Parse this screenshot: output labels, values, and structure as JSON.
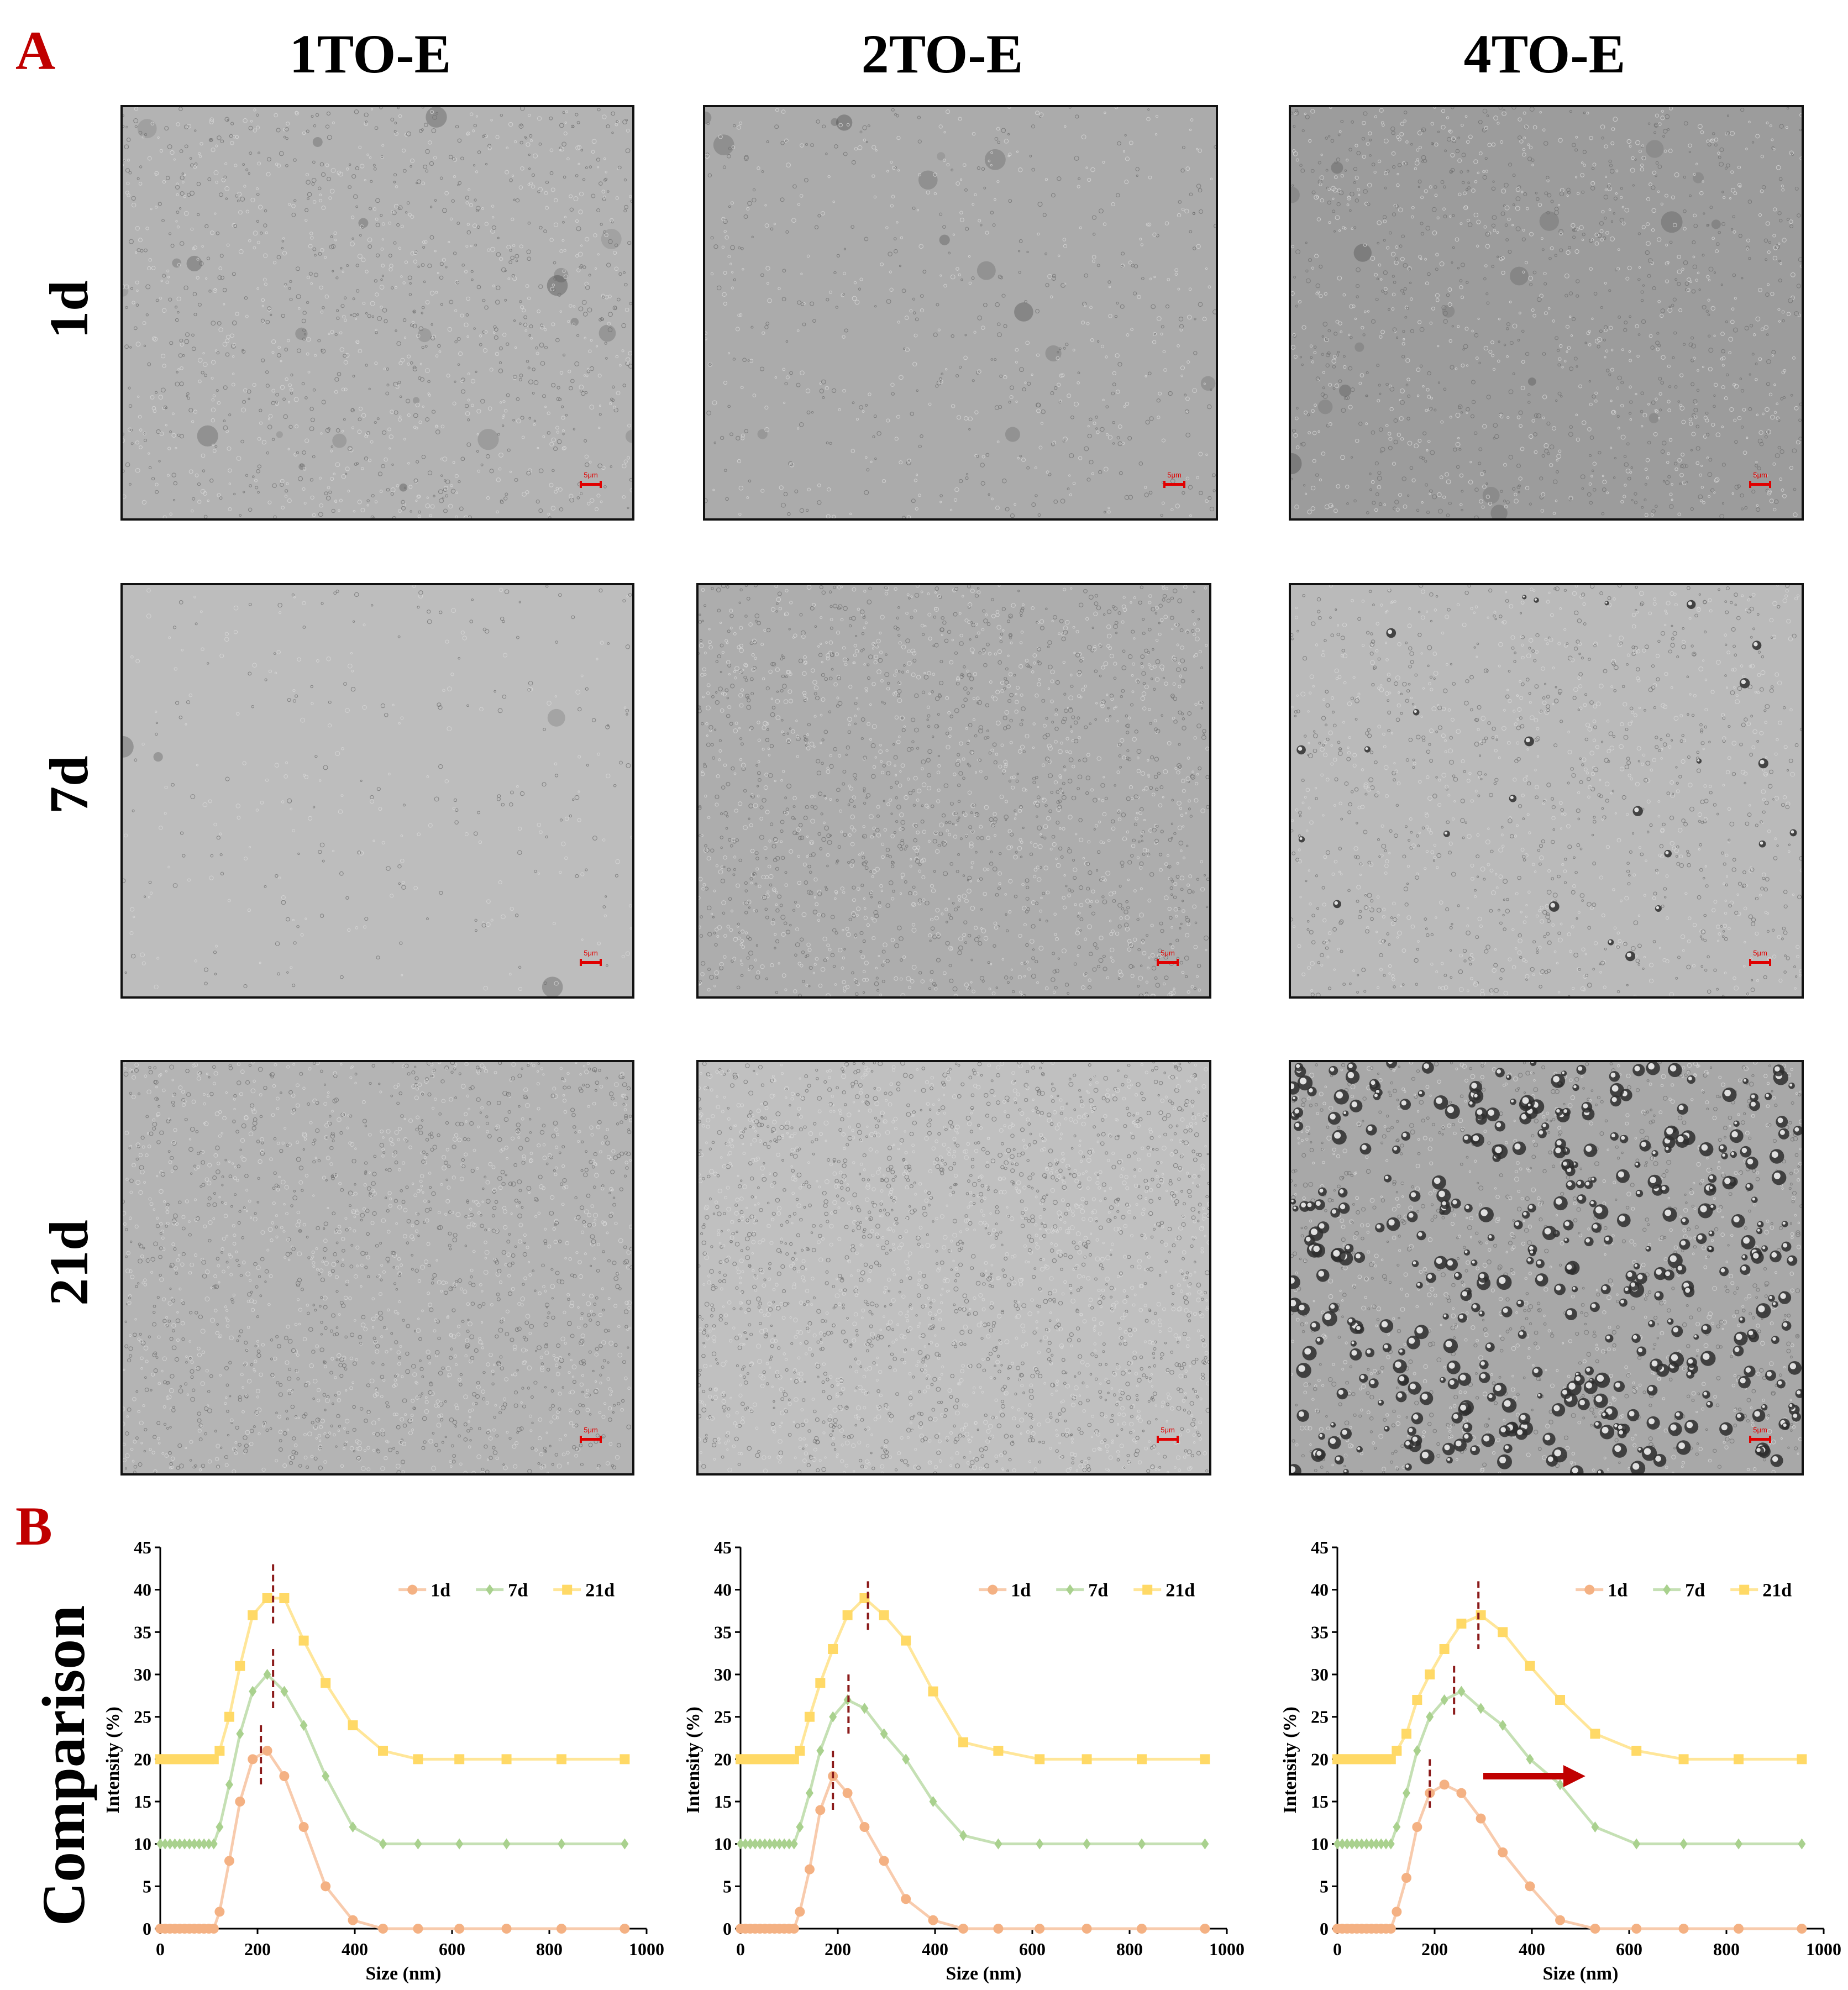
{
  "panels": {
    "a": "A",
    "b": "B"
  },
  "columns": [
    "1TO-E",
    "2TO-E",
    "4TO-E"
  ],
  "rows": [
    "1d",
    "7d",
    "21d"
  ],
  "scale_bar_label": "5μm",
  "comparison_label": "Comparison",
  "colors": {
    "panel_letter": "#c00000",
    "d1": "#f4b183",
    "d1_line": "#f8cbad",
    "d7": "#a9d18e",
    "d7_line": "#c5e0b4",
    "d21": "#ffd966",
    "d21_line": "#ffe699",
    "marker_line": "#8b1a1a",
    "arrow": "#c00000",
    "scale": "#e00000"
  },
  "micrographs": [
    {
      "sample": "1TO-E",
      "day": "1d",
      "tone": "medium-dark, dark clusters"
    },
    {
      "sample": "2TO-E",
      "day": "1d",
      "tone": "medium-dark, sparse dark spots"
    },
    {
      "sample": "4TO-E",
      "day": "1d",
      "tone": "darker, dense texture"
    },
    {
      "sample": "1TO-E",
      "day": "7d",
      "tone": "light, smooth"
    },
    {
      "sample": "2TO-E",
      "day": "7d",
      "tone": "medium, fine droplets"
    },
    {
      "sample": "4TO-E",
      "day": "7d",
      "tone": "light, scattered larger droplets"
    },
    {
      "sample": "1TO-E",
      "day": "21d",
      "tone": "medium, fine droplets"
    },
    {
      "sample": "2TO-E",
      "day": "21d",
      "tone": "light, many fine droplets"
    },
    {
      "sample": "4TO-E",
      "day": "21d",
      "tone": "high contrast, many large droplets"
    }
  ],
  "chart_data": [
    {
      "type": "line",
      "title": "",
      "xlabel": "Size (nm)",
      "ylabel": "Intensity (%)",
      "xlim": [
        0,
        1000
      ],
      "ylim": [
        0,
        45
      ],
      "xticks": [
        0,
        200,
        400,
        600,
        800,
        1000
      ],
      "yticks": [
        0,
        5,
        10,
        15,
        20,
        25,
        30,
        35,
        40,
        45
      ],
      "legend": "top-right",
      "series": [
        {
          "name": "1d",
          "x": [
            0,
            10,
            20,
            30,
            40,
            50,
            60,
            70,
            80,
            90,
            100,
            110,
            122,
            142,
            164,
            190,
            220,
            255,
            295,
            340,
            396,
            458,
            530,
            615,
            712,
            825,
            955
          ],
          "y": [
            0,
            0,
            0,
            0,
            0,
            0,
            0,
            0,
            0,
            0,
            0,
            0,
            2,
            8,
            15,
            20,
            21,
            18,
            12,
            5,
            1,
            0,
            0,
            0,
            0,
            0,
            0
          ]
        },
        {
          "name": "7d",
          "x": [
            0,
            10,
            20,
            30,
            40,
            50,
            60,
            70,
            80,
            90,
            100,
            110,
            122,
            142,
            164,
            190,
            220,
            255,
            295,
            340,
            396,
            458,
            530,
            615,
            712,
            825,
            955
          ],
          "y": [
            10,
            10,
            10,
            10,
            10,
            10,
            10,
            10,
            10,
            10,
            10,
            10,
            12,
            17,
            23,
            28,
            30,
            28,
            24,
            18,
            12,
            10,
            10,
            10,
            10,
            10,
            10
          ]
        },
        {
          "name": "21d",
          "x": [
            0,
            10,
            20,
            30,
            40,
            50,
            60,
            70,
            80,
            90,
            100,
            110,
            122,
            142,
            164,
            190,
            220,
            255,
            295,
            340,
            396,
            458,
            530,
            615,
            712,
            825,
            955
          ],
          "y": [
            20,
            20,
            20,
            20,
            20,
            20,
            20,
            20,
            20,
            20,
            20,
            20,
            21,
            25,
            31,
            37,
            39,
            39,
            34,
            29,
            24,
            21,
            20,
            20,
            20,
            20,
            20
          ]
        }
      ],
      "peak_markers": [
        {
          "x": 207,
          "y_top": 24,
          "y_bottom": 17
        },
        {
          "x": 232,
          "y_top": 33,
          "y_bottom": 26
        },
        {
          "x": 232,
          "y_top": 43,
          "y_bottom": 36
        }
      ]
    },
    {
      "type": "line",
      "title": "",
      "xlabel": "Size (nm)",
      "ylabel": "Intensity (%)",
      "xlim": [
        0,
        1000
      ],
      "ylim": [
        0,
        45
      ],
      "xticks": [
        0,
        200,
        400,
        600,
        800,
        1000
      ],
      "yticks": [
        0,
        5,
        10,
        15,
        20,
        25,
        30,
        35,
        40,
        45
      ],
      "legend": "top-right",
      "series": [
        {
          "name": "1d",
          "x": [
            0,
            10,
            20,
            30,
            40,
            50,
            60,
            70,
            80,
            90,
            100,
            110,
            122,
            142,
            164,
            190,
            220,
            255,
            295,
            340,
            396,
            458,
            530,
            615,
            712,
            825,
            955
          ],
          "y": [
            0,
            0,
            0,
            0,
            0,
            0,
            0,
            0,
            0,
            0,
            0,
            0,
            2,
            7,
            14,
            18,
            16,
            12,
            8,
            3.5,
            1,
            0,
            0,
            0,
            0,
            0,
            0
          ]
        },
        {
          "name": "7d",
          "x": [
            0,
            10,
            20,
            30,
            40,
            50,
            60,
            70,
            80,
            90,
            100,
            110,
            122,
            142,
            164,
            190,
            220,
            255,
            295,
            340,
            396,
            458,
            530,
            615,
            712,
            825,
            955
          ],
          "y": [
            10,
            10,
            10,
            10,
            10,
            10,
            10,
            10,
            10,
            10,
            10,
            10,
            12,
            16,
            21,
            25,
            27,
            26,
            23,
            20,
            15,
            11,
            10,
            10,
            10,
            10,
            10
          ]
        },
        {
          "name": "21d",
          "x": [
            0,
            10,
            20,
            30,
            40,
            50,
            60,
            70,
            80,
            90,
            100,
            110,
            122,
            142,
            164,
            190,
            220,
            255,
            295,
            340,
            396,
            458,
            530,
            615,
            712,
            825,
            955
          ],
          "y": [
            20,
            20,
            20,
            20,
            20,
            20,
            20,
            20,
            20,
            20,
            20,
            20,
            21,
            25,
            29,
            33,
            37,
            39,
            37,
            34,
            28,
            22,
            21,
            20,
            20,
            20,
            20
          ]
        }
      ],
      "peak_markers": [
        {
          "x": 190,
          "y_top": 21,
          "y_bottom": 14
        },
        {
          "x": 222,
          "y_top": 30,
          "y_bottom": 23
        },
        {
          "x": 262,
          "y_top": 41,
          "y_bottom": 35
        }
      ]
    },
    {
      "type": "line",
      "title": "",
      "xlabel": "Size (nm)",
      "ylabel": "Intensity (%)",
      "xlim": [
        0,
        1000
      ],
      "ylim": [
        0,
        45
      ],
      "xticks": [
        0,
        200,
        400,
        600,
        800,
        1000
      ],
      "yticks": [
        0,
        5,
        10,
        15,
        20,
        25,
        30,
        35,
        40,
        45
      ],
      "legend": "top-right",
      "series": [
        {
          "name": "1d",
          "x": [
            0,
            10,
            20,
            30,
            40,
            50,
            60,
            70,
            80,
            90,
            100,
            110,
            122,
            142,
            164,
            190,
            220,
            255,
            295,
            340,
            396,
            458,
            530,
            615,
            712,
            825,
            955
          ],
          "y": [
            0,
            0,
            0,
            0,
            0,
            0,
            0,
            0,
            0,
            0,
            0,
            0,
            2,
            6,
            12,
            16,
            17,
            16,
            13,
            9,
            5,
            1,
            0,
            0,
            0,
            0,
            0
          ]
        },
        {
          "name": "7d",
          "x": [
            0,
            10,
            20,
            30,
            40,
            50,
            60,
            70,
            80,
            90,
            100,
            110,
            122,
            142,
            164,
            190,
            220,
            255,
            295,
            340,
            396,
            458,
            530,
            615,
            712,
            825,
            955
          ],
          "y": [
            10,
            10,
            10,
            10,
            10,
            10,
            10,
            10,
            10,
            10,
            10,
            10,
            12,
            16,
            21,
            25,
            27,
            28,
            26,
            24,
            20,
            17,
            12,
            10,
            10,
            10,
            10
          ]
        },
        {
          "name": "21d",
          "x": [
            0,
            10,
            20,
            30,
            40,
            50,
            60,
            70,
            80,
            90,
            100,
            110,
            122,
            142,
            164,
            190,
            220,
            255,
            295,
            340,
            396,
            458,
            530,
            615,
            712,
            825,
            955
          ],
          "y": [
            20,
            20,
            20,
            20,
            20,
            20,
            20,
            20,
            20,
            20,
            20,
            20,
            21,
            23,
            27,
            30,
            33,
            36,
            37,
            35,
            31,
            27,
            23,
            21,
            20,
            20,
            20
          ]
        }
      ],
      "peak_markers": [
        {
          "x": 190,
          "y_top": 20,
          "y_bottom": 14
        },
        {
          "x": 240,
          "y_top": 31,
          "y_bottom": 25
        },
        {
          "x": 290,
          "y_top": 41,
          "y_bottom": 33
        }
      ],
      "arrow": {
        "x_start": 300,
        "x_end": 510,
        "y": 18
      }
    }
  ]
}
